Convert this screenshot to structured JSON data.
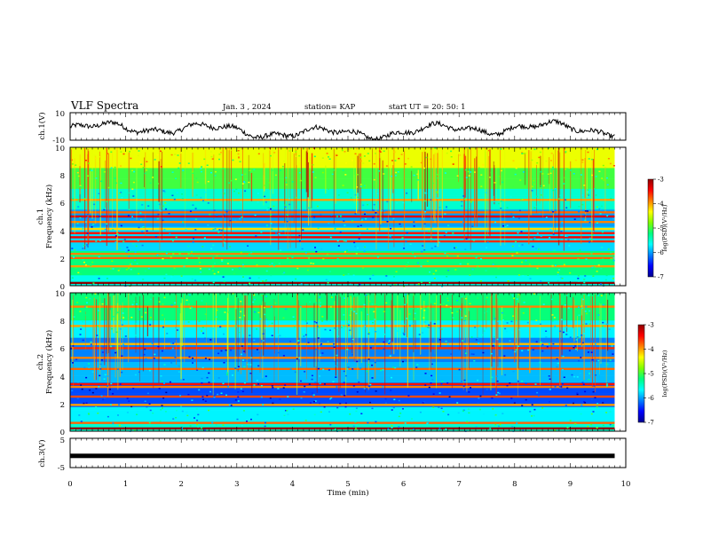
{
  "header": {
    "title": "VLF Spectra",
    "date": "Jan. 3 , 2024",
    "station": "station= KAP",
    "start": "start UT = 20: 50: 1"
  },
  "colors": {
    "colormap": [
      "#00008f",
      "#0000ff",
      "#0080ff",
      "#00ffff",
      "#00ff80",
      "#80ff00",
      "#ffff00",
      "#ff8000",
      "#ff0000",
      "#900000"
    ],
    "waveform": "#000000",
    "axes": "#000000"
  },
  "chart_data": [
    {
      "type": "line",
      "panel": "ch1-waveform",
      "ylabel": "ch.1(V)",
      "ylim": [
        -10,
        10
      ],
      "y_ticks": [
        "10",
        "-10"
      ],
      "xlim": [
        0,
        10
      ],
      "x_end": 9.8,
      "description_values": "continuous noisy waveform, mostly between -8 and 2 V"
    },
    {
      "type": "heatmap",
      "panel": "ch1-spectrogram",
      "ylabel": "ch.1",
      "ylabel2": "Frequency (kHz)",
      "ylim": [
        0,
        10
      ],
      "y_ticks": [
        "0",
        "2",
        "4",
        "6",
        "8",
        "10"
      ],
      "xlim": [
        0,
        10
      ],
      "x_end": 9.8,
      "bands": [
        {
          "freq": 0.2,
          "level": -3.0
        },
        {
          "freq": 1.4,
          "level": -4.0
        },
        {
          "freq": 2.0,
          "level": -3.8
        },
        {
          "freq": 2.3,
          "level": -3.9
        },
        {
          "freq": 3.2,
          "level": -3.6
        },
        {
          "freq": 3.5,
          "level": -3.4
        },
        {
          "freq": 3.8,
          "level": -3.5
        },
        {
          "freq": 4.1,
          "level": -4.2
        },
        {
          "freq": 4.6,
          "level": -3.9
        },
        {
          "freq": 5.0,
          "level": -3.3
        },
        {
          "freq": 5.3,
          "level": -3.8
        },
        {
          "freq": 6.2,
          "level": -4.0
        }
      ],
      "colorbar": {
        "min": -7,
        "max": -3,
        "ticks": [
          "-3",
          "-4",
          "-5",
          "-6",
          "-7"
        ],
        "label": "log(PSD)(V²/Hz)"
      }
    },
    {
      "type": "heatmap",
      "panel": "ch2-spectrogram",
      "ylabel": "ch.2",
      "ylabel2": "Frequency (kHz)",
      "ylim": [
        0,
        10
      ],
      "y_ticks": [
        "0",
        "2",
        "4",
        "6",
        "8",
        "10"
      ],
      "xlim": [
        0,
        10
      ],
      "x_end": 9.8,
      "bands": [
        {
          "freq": 0.2,
          "level": -3.0
        },
        {
          "freq": 0.6,
          "level": -3.8
        },
        {
          "freq": 1.9,
          "level": -4.0
        },
        {
          "freq": 2.5,
          "level": -3.7
        },
        {
          "freq": 3.2,
          "level": -3.9
        },
        {
          "freq": 3.4,
          "level": -3.5
        },
        {
          "freq": 4.5,
          "level": -3.8
        },
        {
          "freq": 5.3,
          "level": -3.9
        },
        {
          "freq": 6.0,
          "level": -3.6
        },
        {
          "freq": 6.3,
          "level": -4.1
        },
        {
          "freq": 7.6,
          "level": -4.0
        },
        {
          "freq": 9.0,
          "level": -3.9
        }
      ],
      "colorbar": {
        "min": -7,
        "max": -3,
        "ticks": [
          "-3",
          "-4",
          "-5",
          "-6",
          "-7"
        ],
        "label": "log(PSD)(V²/Hz)"
      }
    },
    {
      "type": "line",
      "panel": "ch3-waveform",
      "ylabel": "ch.3(V)",
      "ylim": [
        -5,
        5
      ],
      "y_ticks": [
        "5",
        "-5"
      ],
      "xlim": [
        0,
        10
      ],
      "x_end": 9.8,
      "constant_value": -1
    }
  ],
  "xaxis": {
    "label": "Time (min)",
    "ticks": [
      "0",
      "1",
      "2",
      "3",
      "4",
      "5",
      "6",
      "7",
      "8",
      "9",
      "10"
    ]
  }
}
